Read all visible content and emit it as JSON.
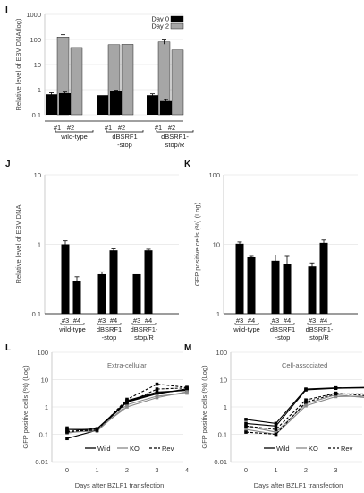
{
  "panels": {
    "i": "I",
    "j": "J",
    "k": "K",
    "l": "L",
    "m": "M"
  },
  "chart_data": [
    {
      "id": "I",
      "type": "bar",
      "log": true,
      "ylim": [
        0.1,
        1000
      ],
      "yticks": [
        "0.1",
        "1",
        "10",
        "100",
        "1000"
      ],
      "ylabel": "Relative level of EBV DNA(log)",
      "legend": {
        "position": "top-right"
      },
      "series": [
        {
          "name": "Day 0",
          "color": "#000000",
          "values": [
            0.65,
            0.72,
            0.6,
            0.85,
            0.6,
            0.35
          ]
        },
        {
          "name": "Day 2",
          "color": "#a6a6a6",
          "values": [
            125,
            48,
            62,
            64,
            80,
            38
          ]
        }
      ],
      "errors": [
        [
          0.1,
          0.08,
          0,
          0.1,
          0.08,
          0.05
        ],
        [
          30,
          0,
          0,
          0,
          15,
          0
        ]
      ],
      "bar_labels": [
        "#1",
        "#2",
        "#1",
        "#2",
        "#1",
        "#2"
      ],
      "groups": [
        [
          "wild-type"
        ],
        [
          "dBSRF1",
          "-stop"
        ],
        [
          "dBSRF1-",
          "stop/R"
        ]
      ]
    },
    {
      "id": "J",
      "type": "bar",
      "log": true,
      "ylim": [
        0.1,
        10
      ],
      "yticks": [
        "0.1",
        "1",
        "10"
      ],
      "ylabel": "Relative level of EBV DNA",
      "series": [
        {
          "color": "#000000",
          "values": [
            1.0,
            0.3,
            0.37,
            0.82,
            0.37,
            0.82
          ]
        }
      ],
      "errors": [
        [
          0.12,
          0.04,
          0.03,
          0.04,
          0,
          0.03
        ]
      ],
      "bar_labels": [
        "#3",
        "#4",
        "#3",
        "#4",
        "#3",
        "#4"
      ],
      "groups": [
        [
          "wild-type"
        ],
        [
          "dBSRF1",
          "-stop"
        ],
        [
          "dBSRF1-",
          "stop/R"
        ]
      ]
    },
    {
      "id": "K",
      "type": "bar",
      "log": true,
      "ylim": [
        1,
        100
      ],
      "yticks": [
        "1",
        "10",
        "100"
      ],
      "ylabel": "GFP positive cells (%) (Log)",
      "series": [
        {
          "color": "#000000",
          "values": [
            10.2,
            6.5,
            5.8,
            5.2,
            4.8,
            10.5
          ]
        }
      ],
      "errors": [
        [
          0.6,
          0.2,
          1.2,
          1.5,
          0.6,
          1.0
        ]
      ],
      "bar_labels": [
        "#3",
        "#4",
        "#3",
        "#4",
        "#3",
        "#4"
      ],
      "groups": [
        [
          "wild-type"
        ],
        [
          "dBSRF1",
          "-stop"
        ],
        [
          "dBSRF1-",
          "stop/R"
        ]
      ]
    },
    {
      "id": "L",
      "type": "line",
      "log": true,
      "ylim": [
        0.01,
        100
      ],
      "yticks": [
        "0.01",
        "0.1",
        "1",
        "10",
        "100"
      ],
      "x": [
        0,
        1,
        2,
        3,
        4
      ],
      "xlabel": "Days after BZLF1 transfection",
      "ylabel": "GFP positive cells (%) (Log)",
      "annotation": "Extra-cellular",
      "legend": {
        "position": "bottom"
      },
      "series": [
        {
          "name": "Wild",
          "style": "solid-black",
          "values": [
            [
              0.17,
              0.16,
              1.6,
              3.2,
              4.2
            ],
            [
              0.15,
              0.14,
              1.7,
              3.5,
              4.0
            ],
            [
              0.07,
              0.14,
              1.5,
              3.0,
              4.6
            ]
          ]
        },
        {
          "name": "KO",
          "style": "solid-gray",
          "values": [
            [
              0.12,
              0.13,
              1.2,
              2.5,
              3.2
            ],
            [
              0.11,
              0.15,
              1.0,
              2.2,
              3.6
            ]
          ]
        },
        {
          "name": "Rev",
          "style": "dashed",
          "values": [
            [
              0.13,
              0.14,
              1.9,
              6.8,
              5.2
            ],
            [
              0.12,
              0.16,
              1.4,
              4.5,
              5.0
            ]
          ]
        }
      ]
    },
    {
      "id": "M",
      "type": "line",
      "log": true,
      "ylim": [
        0.01,
        100
      ],
      "yticks": [
        "0.01",
        "0.1",
        "1",
        "10",
        "100"
      ],
      "x": [
        0,
        1,
        2,
        3,
        4
      ],
      "xlabel": "Days after BZLF1 transfection",
      "ylabel": "GFP positive cells (%) (Log)",
      "annotation": "Cell-associated",
      "legend": {
        "position": "bottom"
      },
      "series": [
        {
          "name": "Wild",
          "style": "solid-black",
          "values": [
            [
              0.35,
              0.25,
              4.5,
              5.0,
              5.2
            ],
            [
              0.25,
              0.2,
              4.2,
              4.8,
              5.0
            ]
          ]
        },
        {
          "name": "KO",
          "style": "solid-gray",
          "values": [
            [
              0.2,
              0.12,
              1.3,
              2.8,
              2.2
            ],
            [
              0.15,
              0.1,
              1.1,
              2.4,
              2.5
            ]
          ]
        },
        {
          "name": "Rev",
          "style": "dashed",
          "values": [
            [
              0.2,
              0.15,
              1.8,
              3.2,
              2.6
            ],
            [
              0.12,
              0.1,
              1.5,
              3.0,
              3.0
            ]
          ]
        }
      ]
    }
  ]
}
